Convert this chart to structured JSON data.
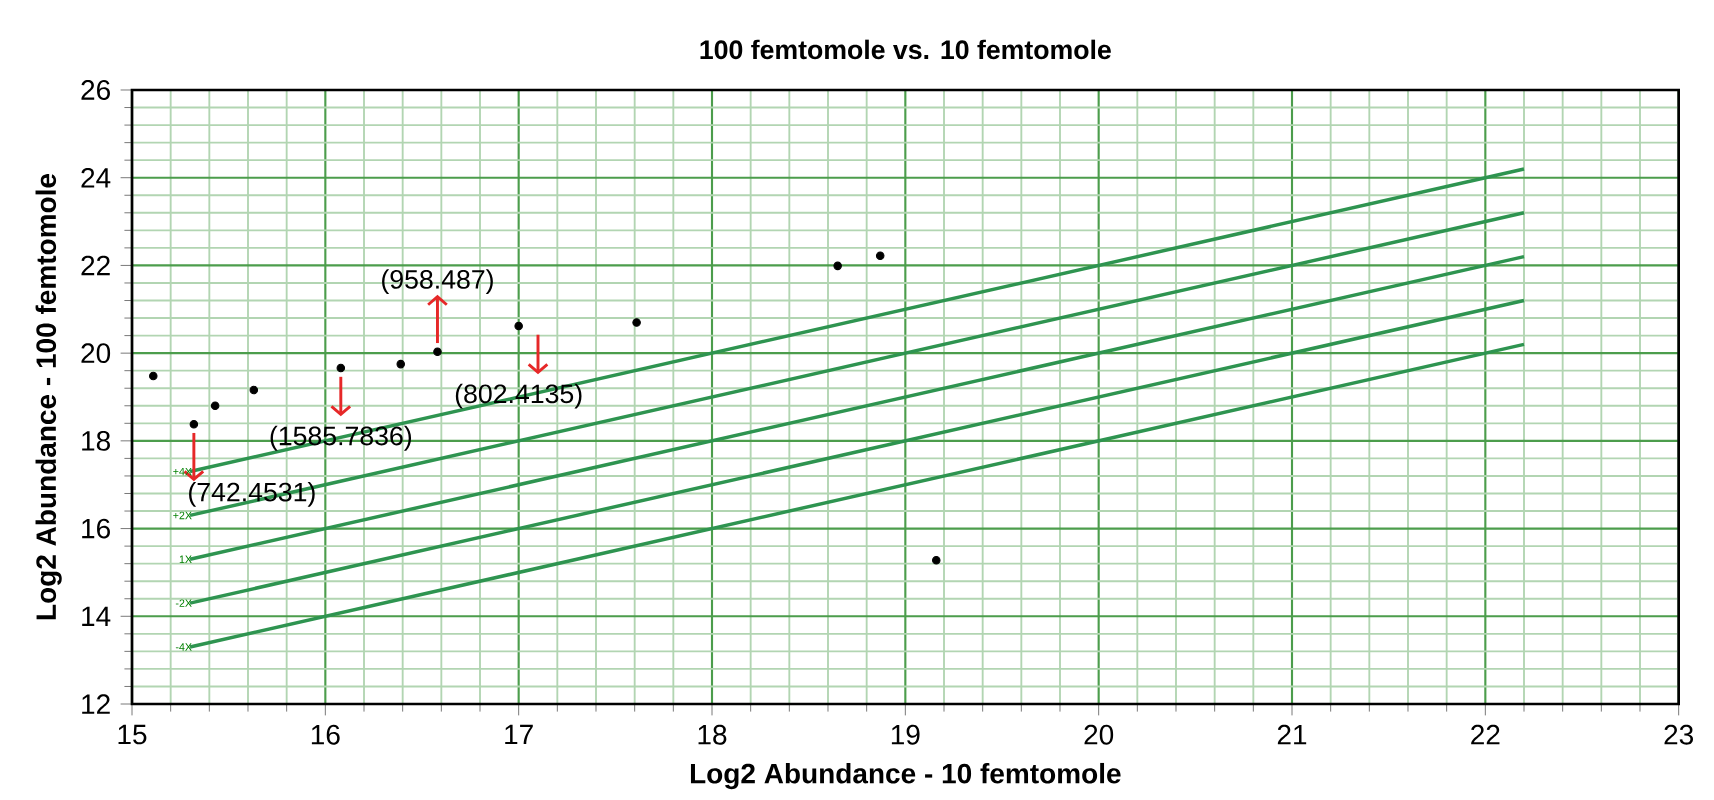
{
  "chart_data": {
    "type": "scatter",
    "title": "100 femtomole vs. 10 femtomole",
    "xlabel": "Log2 Abundance - 10 femtomole",
    "ylabel": "Log2 Abundance - 100 femtomole",
    "xlim": [
      15,
      23
    ],
    "ylim": [
      12,
      26
    ],
    "xticks": [
      15,
      16,
      17,
      18,
      19,
      20,
      21,
      22,
      23
    ],
    "yticks": [
      12,
      14,
      16,
      18,
      20,
      22,
      24,
      26
    ],
    "grid": true,
    "marker": "circle",
    "series": [
      {
        "color": "#000000",
        "x": [
          15.11,
          15.32,
          15.43,
          15.63,
          16.08,
          16.39,
          16.58,
          17.0,
          17.61,
          18.65,
          18.87,
          19.16
        ],
        "values": [
          19.48,
          18.38,
          18.8,
          19.16,
          19.66,
          19.75,
          20.03,
          20.62,
          20.7,
          21.99,
          22.22,
          15.28
        ]
      },
      {
        "type": "line",
        "marker": "none",
        "color": "#2e9450",
        "x": [
          15.3,
          22.2
        ],
        "values": [
          17.3,
          24.2
        ]
      },
      {
        "type": "line",
        "marker": "none",
        "color": "#2e9450",
        "x": [
          15.3,
          22.2
        ],
        "values": [
          16.3,
          23.2
        ]
      },
      {
        "type": "line",
        "marker": "none",
        "color": "#2e9450",
        "x": [
          15.3,
          22.2
        ],
        "values": [
          15.3,
          22.2
        ]
      },
      {
        "type": "line",
        "marker": "none",
        "color": "#2e9450",
        "x": [
          15.3,
          22.2
        ],
        "values": [
          14.3,
          21.2
        ]
      },
      {
        "type": "line",
        "marker": "none",
        "color": "#2e9450",
        "x": [
          15.3,
          22.2
        ],
        "values": [
          13.3,
          20.2
        ]
      }
    ],
    "annotations": [
      {
        "text": "(742.4531)",
        "x": 15.32,
        "y": 18.38
      },
      {
        "text": "(1585.7836)",
        "x": 16.08,
        "y": 19.66
      },
      {
        "text": "(958.487)",
        "x": 16.58,
        "y": 20.03
      },
      {
        "text": "(802.4135)",
        "x": 17.0,
        "y": 20.62
      },
      {
        "text": "+4X",
        "x": 15.3,
        "y": 17.3
      },
      {
        "text": "+2X",
        "x": 15.3,
        "y": 16.3
      },
      {
        "text": "1X",
        "x": 15.3,
        "y": 15.3
      },
      {
        "text": "-2X",
        "x": 15.3,
        "y": 14.3
      },
      {
        "text": "-4X",
        "x": 15.3,
        "y": 13.3
      }
    ]
  }
}
